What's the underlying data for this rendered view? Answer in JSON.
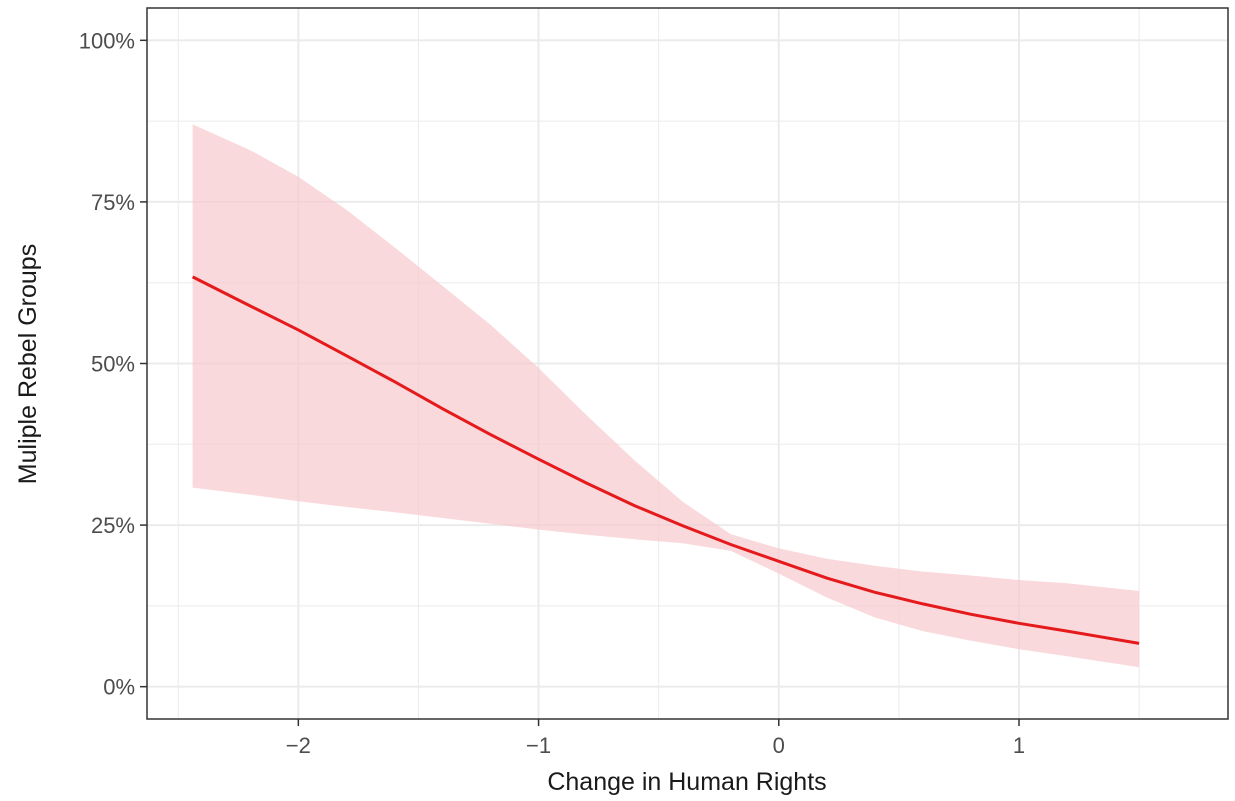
{
  "chart_data": {
    "type": "line",
    "title": "",
    "xlabel": "Change in Human Rights",
    "ylabel": "Muliple Rebel Groups",
    "xlim": [
      -2.63,
      1.87
    ],
    "ylim": [
      -0.05,
      1.05
    ],
    "x_ticks": [
      {
        "value": -2,
        "label": "−2"
      },
      {
        "value": -1,
        "label": "−1"
      },
      {
        "value": 0,
        "label": "0"
      },
      {
        "value": 1,
        "label": "1"
      }
    ],
    "y_ticks": [
      {
        "value": 0,
        "label": "0%"
      },
      {
        "value": 0.25,
        "label": "25%"
      },
      {
        "value": 0.5,
        "label": "50%"
      },
      {
        "value": 0.75,
        "label": "75%"
      },
      {
        "value": 1.0,
        "label": "100%"
      }
    ],
    "grid": true,
    "legend": "none",
    "colors": {
      "line": "#e41a1c",
      "ribbon": "#f8c9cd",
      "grid": "#ebebeb",
      "panel_border": "#333333"
    },
    "series": [
      {
        "x": [
          -2.44,
          -2.2,
          -2.0,
          -1.8,
          -1.6,
          -1.4,
          -1.2,
          -1.0,
          -0.8,
          -0.6,
          -0.4,
          -0.2,
          0.0,
          0.2,
          0.4,
          0.6,
          0.8,
          1.0,
          1.2,
          1.5
        ],
        "fit": [
          0.634,
          0.589,
          0.552,
          0.512,
          0.472,
          0.43,
          0.39,
          0.352,
          0.315,
          0.28,
          0.249,
          0.22,
          0.194,
          0.168,
          0.146,
          0.128,
          0.112,
          0.098,
          0.086,
          0.067
        ],
        "lower": [
          0.308,
          0.297,
          0.287,
          0.278,
          0.27,
          0.261,
          0.252,
          0.243,
          0.235,
          0.228,
          0.222,
          0.21,
          0.175,
          0.138,
          0.107,
          0.086,
          0.071,
          0.058,
          0.047,
          0.03
        ],
        "upper": [
          0.87,
          0.83,
          0.789,
          0.738,
          0.68,
          0.62,
          0.56,
          0.493,
          0.42,
          0.35,
          0.286,
          0.236,
          0.214,
          0.198,
          0.187,
          0.178,
          0.172,
          0.165,
          0.16,
          0.148
        ]
      }
    ]
  }
}
